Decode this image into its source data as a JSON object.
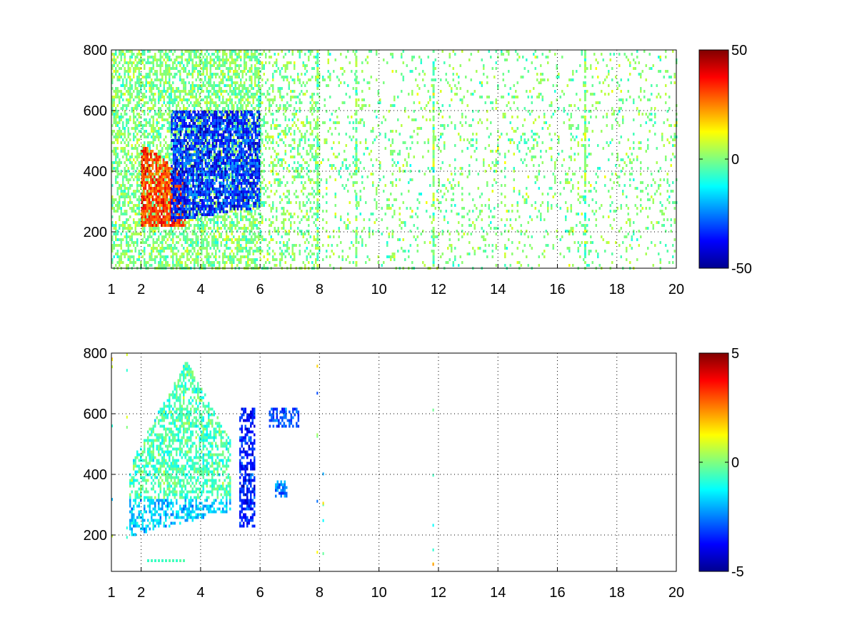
{
  "chart_data": [
    {
      "type": "heatmap",
      "title": "",
      "xlabel": "",
      "ylabel": "",
      "xlim": [
        1,
        20
      ],
      "ylim": [
        80,
        800
      ],
      "xtick_values": [
        1,
        2,
        4,
        6,
        8,
        10,
        12,
        14,
        16,
        18,
        20
      ],
      "xtick_labels": [
        "1",
        "2",
        "4",
        "6",
        "8",
        "10",
        "12",
        "14",
        "16",
        "18",
        "20"
      ],
      "ytick_values": [
        200,
        400,
        600,
        800
      ],
      "ytick_labels": [
        "200",
        "400",
        "600",
        "800"
      ],
      "grid": true,
      "colormap": "jet",
      "colorbar": {
        "clim": [
          -50,
          50
        ],
        "tick_values": [
          50,
          0,
          -50
        ],
        "tick_labels": [
          "50",
          "0",
          "-50"
        ]
      },
      "features": {
        "positive_band": {
          "x": [
            2.0,
            3.5
          ],
          "y": [
            220,
            480
          ],
          "value": 40
        },
        "negative_band": {
          "x": [
            3.0,
            6.0
          ],
          "y": [
            240,
            600
          ],
          "value": -45
        },
        "sparse_noise": {
          "x": [
            1,
            20
          ],
          "y": [
            80,
            800
          ],
          "value_range": [
            -15,
            15
          ]
        },
        "strong_columns": [
          7.9,
          9.2,
          11.8,
          16.9
        ]
      }
    },
    {
      "type": "heatmap",
      "title": "",
      "xlabel": "",
      "ylabel": "",
      "xlim": [
        1,
        20
      ],
      "ylim": [
        80,
        800
      ],
      "xtick_values": [
        1,
        2,
        4,
        6,
        8,
        10,
        12,
        14,
        16,
        18,
        20
      ],
      "xtick_labels": [
        "1",
        "2",
        "4",
        "6",
        "8",
        "10",
        "12",
        "14",
        "16",
        "18",
        "20"
      ],
      "ytick_values": [
        200,
        400,
        600,
        800
      ],
      "ytick_labels": [
        "200",
        "400",
        "600",
        "800"
      ],
      "grid": true,
      "colormap": "jet",
      "colorbar": {
        "clim": [
          -5,
          5
        ],
        "tick_values": [
          5,
          0,
          -5
        ],
        "tick_labels": [
          "5",
          "0",
          "-5"
        ]
      },
      "features": {
        "main_cluster": {
          "x": [
            1.6,
            5.0
          ],
          "y": [
            180,
            780
          ],
          "value_range": [
            -2,
            1.5
          ]
        },
        "blue_column": {
          "x": [
            5.3,
            5.8
          ],
          "y": [
            230,
            620
          ],
          "value": -3.5
        },
        "blue_patches": [
          {
            "x": [
              6.3,
              7.3
            ],
            "y": [
              560,
              620
            ],
            "value": -3
          },
          {
            "x": [
              6.5,
              6.9
            ],
            "y": [
              330,
              380
            ],
            "value": -2.5
          }
        ],
        "sparse_points_x": [
          1.0,
          1.5,
          7.9,
          8.1,
          11.8
        ]
      }
    }
  ]
}
